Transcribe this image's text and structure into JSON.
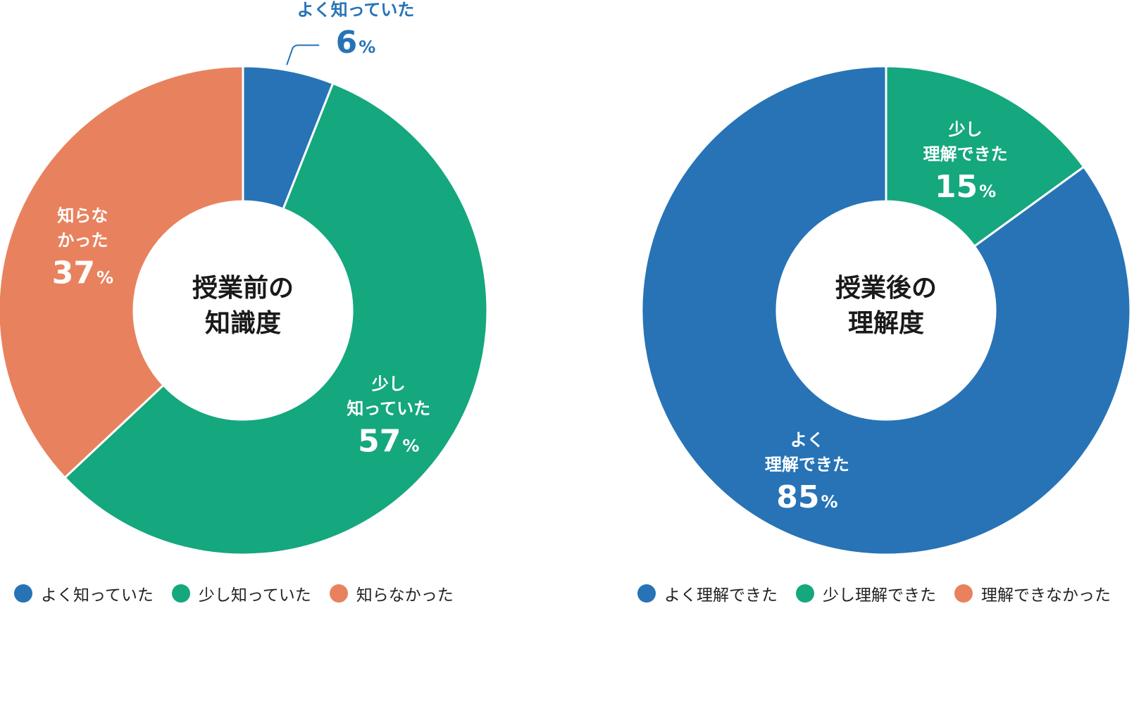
{
  "colors": {
    "blue": "#2773b6",
    "green": "#15a77e",
    "orange": "#e8825e",
    "white": "#ffffff",
    "title_text": "#1a1a1a"
  },
  "chart_data": [
    {
      "type": "pie",
      "title": [
        "授業前の",
        "知識度"
      ],
      "slices": [
        {
          "label": [
            "よく知っていた"
          ],
          "value": 6,
          "color": "#2773b6"
        },
        {
          "label": [
            "少し",
            "知っていた"
          ],
          "value": 57,
          "color": "#15a77e"
        },
        {
          "label": [
            "知らな",
            "かった"
          ],
          "value": 37,
          "color": "#e8825e"
        }
      ],
      "percent_unit": "%",
      "legend": [
        "よく知っていた",
        "少し知っていた",
        "知らなかった"
      ],
      "legend_position": "bottom"
    },
    {
      "type": "pie",
      "title": [
        "授業後の",
        "理解度"
      ],
      "slices": [
        {
          "label": [
            "少し",
            "理解できた"
          ],
          "value": 15,
          "color": "#15a77e"
        },
        {
          "label": [
            "よく",
            "理解できた"
          ],
          "value": 85,
          "color": "#2773b6"
        }
      ],
      "percent_unit": "%",
      "legend": [
        "よく理解できた",
        "少し理解できた",
        "理解できなかった"
      ],
      "legend_position": "bottom"
    }
  ],
  "legend_colors": [
    [
      "#2773b6",
      "#15a77e",
      "#e8825e"
    ],
    [
      "#2773b6",
      "#15a77e",
      "#e8825e"
    ]
  ]
}
